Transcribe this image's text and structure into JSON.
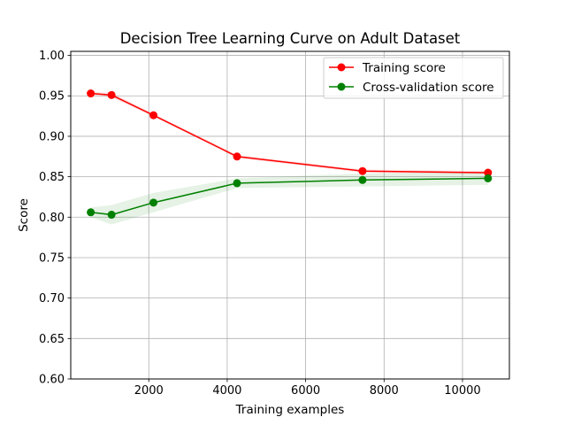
{
  "chart_data": {
    "type": "line",
    "title": "Decision Tree Learning Curve on Adult Dataset",
    "xlabel": "Training examples",
    "ylabel": "Score",
    "xlim": [
      10,
      11196
    ],
    "ylim": [
      0.6,
      1.005
    ],
    "xticks": [
      2000,
      4000,
      6000,
      8000,
      10000
    ],
    "xtick_labels": [
      "2000",
      "4000",
      "6000",
      "8000",
      "10000"
    ],
    "yticks": [
      0.6,
      0.65,
      0.7,
      0.75,
      0.8,
      0.85,
      0.9,
      0.95,
      1.0
    ],
    "ytick_labels": [
      "0.60",
      "0.65",
      "0.70",
      "0.75",
      "0.80",
      "0.85",
      "0.90",
      "0.95",
      "1.00"
    ],
    "grid": true,
    "legend_position": "top-right",
    "series": [
      {
        "name": "Training score",
        "color": "#ff0000",
        "band_color": "#ff0000",
        "x": [
          520,
          1050,
          2120,
          4250,
          7450,
          10650
        ],
        "y": [
          0.953,
          0.951,
          0.926,
          0.875,
          0.857,
          0.855
        ],
        "std": [
          0.002,
          0.003,
          0.002,
          0.002,
          0.002,
          0.002
        ]
      },
      {
        "name": "Cross-validation score",
        "color": "#008000",
        "band_color": "#008000",
        "x": [
          520,
          1050,
          2120,
          4250,
          7450,
          10650
        ],
        "y": [
          0.806,
          0.803,
          0.818,
          0.842,
          0.846,
          0.848
        ],
        "std": [
          0.006,
          0.012,
          0.012,
          0.006,
          0.008,
          0.008
        ]
      }
    ]
  }
}
